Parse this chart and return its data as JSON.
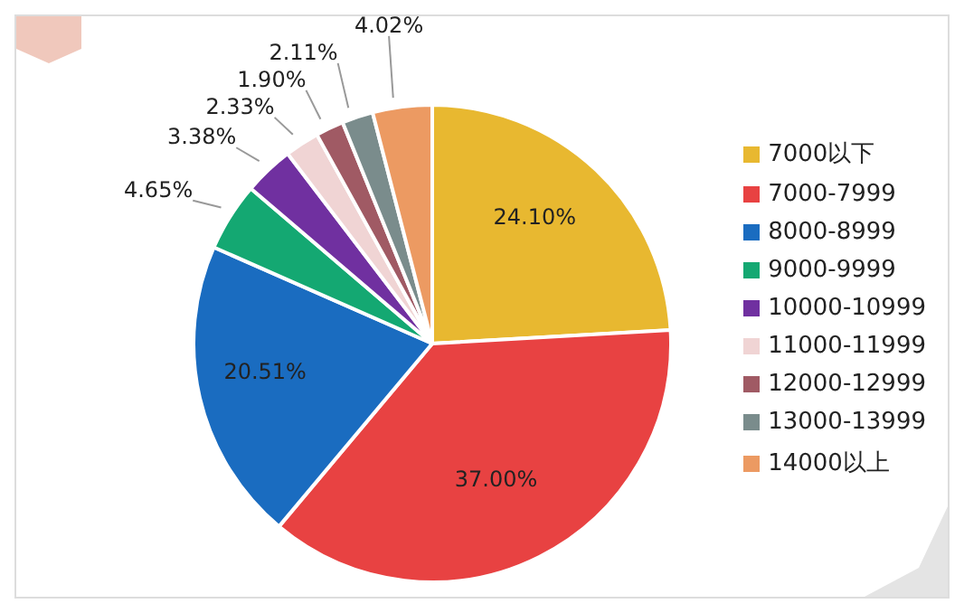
{
  "chart_data": {
    "type": "pie",
    "categories": [
      "7000以下",
      "7000-7999",
      "8000-8999",
      "9000-9999",
      "10000-10999",
      "11000-11999",
      "12000-12999",
      "13000-13999",
      "14000以上"
    ],
    "values": [
      24.1,
      37.0,
      20.51,
      4.65,
      3.38,
      2.33,
      1.9,
      2.11,
      4.02
    ],
    "colors": [
      "#e8b830",
      "#e84242",
      "#1a6cc0",
      "#14a872",
      "#7030a0",
      "#f0d4d4",
      "#a05a64",
      "#7a8c8c",
      "#ec9a62"
    ],
    "value_labels": [
      "24.10%",
      "37.00%",
      "20.51%",
      "4.65%",
      "3.38%",
      "2.33%",
      "1.90%",
      "2.11%",
      "4.02%"
    ],
    "legend": "right"
  }
}
